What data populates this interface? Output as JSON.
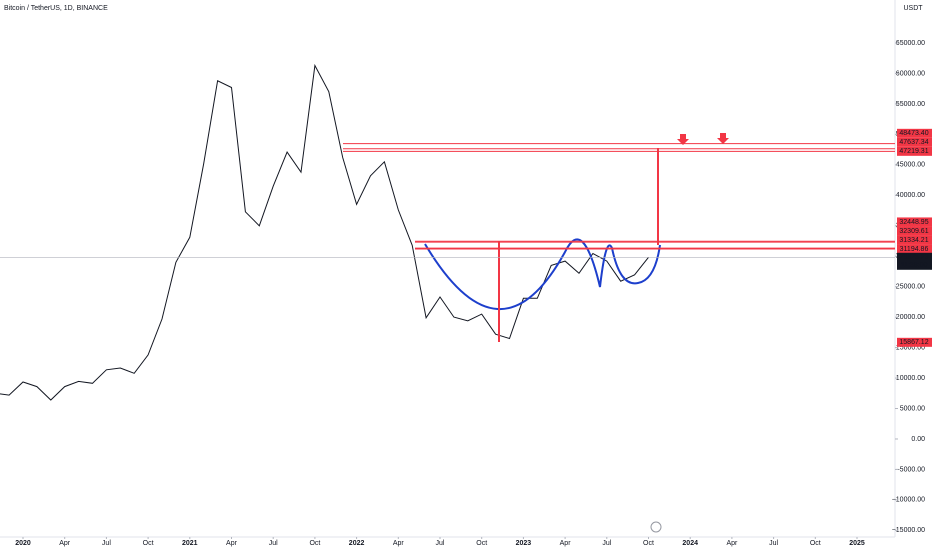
{
  "chart_data": {
    "type": "line",
    "title": "Bitcoin / TetherUS, 1D, BINANCE",
    "currency": "USDT",
    "countdown": "11:38:00",
    "x": [
      "2019-11",
      "2019-12",
      "2020-01",
      "2020-02",
      "2020-03",
      "2020-04",
      "2020-05",
      "2020-06",
      "2020-07",
      "2020-08",
      "2020-09",
      "2020-10",
      "2020-11",
      "2020-12",
      "2021-01",
      "2021-02",
      "2021-03",
      "2021-04",
      "2021-05",
      "2021-06",
      "2021-07",
      "2021-08",
      "2021-09",
      "2021-10",
      "2021-11",
      "2021-12",
      "2022-01",
      "2022-02",
      "2022-03",
      "2022-04",
      "2022-05",
      "2022-06",
      "2022-07",
      "2022-08",
      "2022-09",
      "2022-10",
      "2022-11",
      "2022-12",
      "2023-01",
      "2023-02",
      "2023-03",
      "2023-04",
      "2023-05",
      "2023-06",
      "2023-07",
      "2023-08",
      "2023-09",
      "2023-10"
    ],
    "series": [
      {
        "name": "Bitcoin / TetherUS",
        "color": "#131722",
        "values": [
          7500,
          7200,
          9350,
          8600,
          6400,
          8600,
          9450,
          9140,
          11350,
          11650,
          10780,
          13800,
          19700,
          29000,
          33100,
          45200,
          58800,
          57700,
          37300,
          35000,
          41500,
          47100,
          43800,
          61300,
          57000,
          46200,
          38500,
          43200,
          45500,
          37600,
          31800,
          19900,
          23300,
          20000,
          19400,
          20500,
          17200,
          16500,
          23100,
          23100,
          28500,
          29200,
          27200,
          30450,
          29200,
          25900,
          26950,
          29825.23
        ]
      }
    ],
    "ylim": [
      -16090,
      72060
    ],
    "yticks": [
      {
        "value": 65000,
        "label": "65000.00"
      },
      {
        "value": 60000,
        "label": "60000.00"
      },
      {
        "value": 55000,
        "label": "55000.00"
      },
      {
        "value": 50000,
        "label": "50000.00"
      },
      {
        "value": 45000,
        "label": "45000.00"
      },
      {
        "value": 40000,
        "label": "40000.00"
      },
      {
        "value": 35000,
        "label": "35000.00"
      },
      {
        "value": 30000,
        "label": "30000.00"
      },
      {
        "value": 25000,
        "label": "25000.00"
      },
      {
        "value": 20000,
        "label": "20000.00"
      },
      {
        "value": 15000,
        "label": "15000.00"
      },
      {
        "value": 10000,
        "label": "10000.00"
      },
      {
        "value": 5000,
        "label": "5000.00"
      },
      {
        "value": 0,
        "label": "0.00"
      },
      {
        "value": -5000,
        "label": "−5000.00"
      },
      {
        "value": -10000,
        "label": "−10000.00"
      },
      {
        "value": -15000,
        "label": "−15000.00"
      }
    ],
    "xticks": [
      {
        "value": "2020-01",
        "label": "2020"
      },
      {
        "value": "2020-04",
        "label": "Apr"
      },
      {
        "value": "2020-07",
        "label": "Jul"
      },
      {
        "value": "2020-10",
        "label": "Oct"
      },
      {
        "value": "2021-01",
        "label": "2021"
      },
      {
        "value": "2021-04",
        "label": "Apr"
      },
      {
        "value": "2021-07",
        "label": "Jul"
      },
      {
        "value": "2021-10",
        "label": "Oct"
      },
      {
        "value": "2022-01",
        "label": "2022"
      },
      {
        "value": "2022-04",
        "label": "Apr"
      },
      {
        "value": "2022-07",
        "label": "Jul"
      },
      {
        "value": "2022-10",
        "label": "Oct"
      },
      {
        "value": "2023-01",
        "label": "2023"
      },
      {
        "value": "2023-04",
        "label": "Apr"
      },
      {
        "value": "2023-07",
        "label": "Jul"
      },
      {
        "value": "2023-10",
        "label": "Oct"
      },
      {
        "value": "2024-01",
        "label": "2024"
      },
      {
        "value": "2024-04",
        "label": "Apr"
      },
      {
        "value": "2024-07",
        "label": "Jul"
      },
      {
        "value": "2024-10",
        "label": "Oct"
      },
      {
        "value": "2025-01",
        "label": "2025"
      }
    ],
    "levels": [
      {
        "value": 48473.4,
        "label": "48473.40"
      },
      47637.34,
      47219.31,
      32448.95,
      32309.61,
      31334.21,
      31194.86,
      15867.12
    ],
    "level_color": "#f23645"
  }
}
